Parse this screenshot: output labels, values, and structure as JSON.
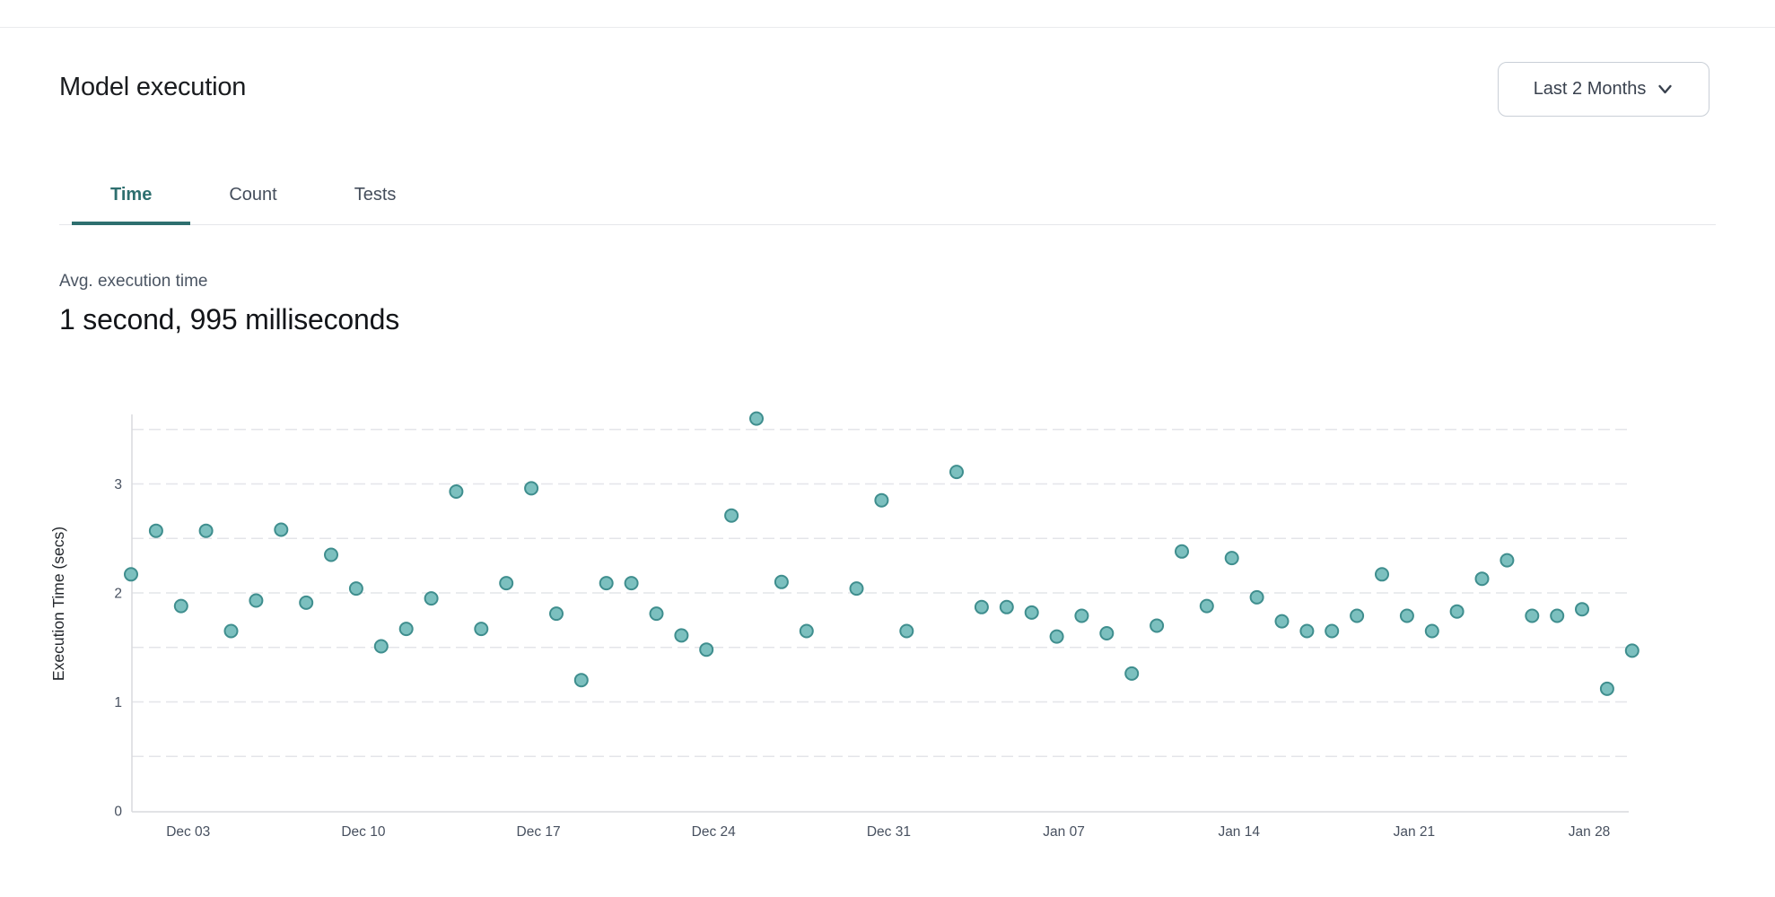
{
  "header": {
    "title": "Model execution",
    "range_selector": {
      "label": "Last 2 Months",
      "icon": "chevron-down-icon"
    }
  },
  "tabs": [
    {
      "label": "Time",
      "active": true
    },
    {
      "label": "Count",
      "active": false
    },
    {
      "label": "Tests",
      "active": false
    }
  ],
  "metric": {
    "label": "Avg. execution time",
    "value": "1 second, 995 milliseconds"
  },
  "colors": {
    "accent_teal": "#2e6f6f",
    "marker_fill": "#7cc0bf",
    "marker_stroke": "#3f8e8e",
    "grid": "#e4e5e9",
    "axis": "#d9dade"
  },
  "chart_data": {
    "type": "scatter",
    "title": "",
    "xlabel": "",
    "ylabel": "Execution Time (secs)",
    "ylim": [
      0,
      3.65
    ],
    "yticks": [
      0,
      1,
      2,
      3
    ],
    "grid_values": [
      0.5,
      1,
      1.5,
      2,
      2.5,
      3,
      3.5
    ],
    "grid": true,
    "legend_position": "none",
    "x_ticks": [
      "Dec 03",
      "Dec 10",
      "Dec 17",
      "Dec 24",
      "Dec 31",
      "Jan 07",
      "Jan 14",
      "Jan 21",
      "Jan 28"
    ],
    "points": [
      {
        "date": "Dec 01",
        "secs": 2.17
      },
      {
        "date": "Dec 02",
        "secs": 2.57
      },
      {
        "date": "Dec 03",
        "secs": 1.88
      },
      {
        "date": "Dec 04",
        "secs": 2.57
      },
      {
        "date": "Dec 05",
        "secs": 1.65
      },
      {
        "date": "Dec 06",
        "secs": 1.93
      },
      {
        "date": "Dec 07",
        "secs": 2.58
      },
      {
        "date": "Dec 08",
        "secs": 1.91
      },
      {
        "date": "Dec 09",
        "secs": 2.35
      },
      {
        "date": "Dec 10",
        "secs": 2.04
      },
      {
        "date": "Dec 11",
        "secs": 1.51
      },
      {
        "date": "Dec 12",
        "secs": 1.67
      },
      {
        "date": "Dec 13",
        "secs": 1.95
      },
      {
        "date": "Dec 14",
        "secs": 2.93
      },
      {
        "date": "Dec 15",
        "secs": 1.67
      },
      {
        "date": "Dec 16",
        "secs": 2.09
      },
      {
        "date": "Dec 17",
        "secs": 2.96
      },
      {
        "date": "Dec 18",
        "secs": 1.81
      },
      {
        "date": "Dec 19",
        "secs": 1.2
      },
      {
        "date": "Dec 20",
        "secs": 2.09
      },
      {
        "date": "Dec 21",
        "secs": 2.09
      },
      {
        "date": "Dec 22",
        "secs": 1.81
      },
      {
        "date": "Dec 23",
        "secs": 1.61
      },
      {
        "date": "Dec 24",
        "secs": 1.48
      },
      {
        "date": "Dec 25",
        "secs": 2.71
      },
      {
        "date": "Dec 26",
        "secs": 3.6
      },
      {
        "date": "Dec 27",
        "secs": 2.1
      },
      {
        "date": "Dec 28",
        "secs": 1.65
      },
      {
        "date": "Dec 30",
        "secs": 2.04
      },
      {
        "date": "Dec 31",
        "secs": 2.85
      },
      {
        "date": "Jan 01",
        "secs": 1.65
      },
      {
        "date": "Jan 03",
        "secs": 3.11
      },
      {
        "date": "Jan 04",
        "secs": 1.87
      },
      {
        "date": "Jan 05",
        "secs": 1.87
      },
      {
        "date": "Jan 06",
        "secs": 1.82
      },
      {
        "date": "Jan 07",
        "secs": 1.6
      },
      {
        "date": "Jan 08",
        "secs": 1.79
      },
      {
        "date": "Jan 09",
        "secs": 1.63
      },
      {
        "date": "Jan 10",
        "secs": 1.26
      },
      {
        "date": "Jan 11",
        "secs": 1.7
      },
      {
        "date": "Jan 12",
        "secs": 2.38
      },
      {
        "date": "Jan 13",
        "secs": 1.88
      },
      {
        "date": "Jan 14",
        "secs": 2.32
      },
      {
        "date": "Jan 15",
        "secs": 1.96
      },
      {
        "date": "Jan 16",
        "secs": 1.74
      },
      {
        "date": "Jan 17",
        "secs": 1.65
      },
      {
        "date": "Jan 18",
        "secs": 1.65
      },
      {
        "date": "Jan 19",
        "secs": 1.79
      },
      {
        "date": "Jan 20",
        "secs": 2.17
      },
      {
        "date": "Jan 21",
        "secs": 1.79
      },
      {
        "date": "Jan 22",
        "secs": 1.65
      },
      {
        "date": "Jan 23",
        "secs": 1.83
      },
      {
        "date": "Jan 24",
        "secs": 2.13
      },
      {
        "date": "Jan 25",
        "secs": 2.3
      },
      {
        "date": "Jan 26",
        "secs": 1.79
      },
      {
        "date": "Jan 27",
        "secs": 1.79
      },
      {
        "date": "Jan 28",
        "secs": 1.85
      },
      {
        "date": "Jan 29",
        "secs": 1.12
      },
      {
        "date": "Jan 30",
        "secs": 1.47
      }
    ]
  }
}
